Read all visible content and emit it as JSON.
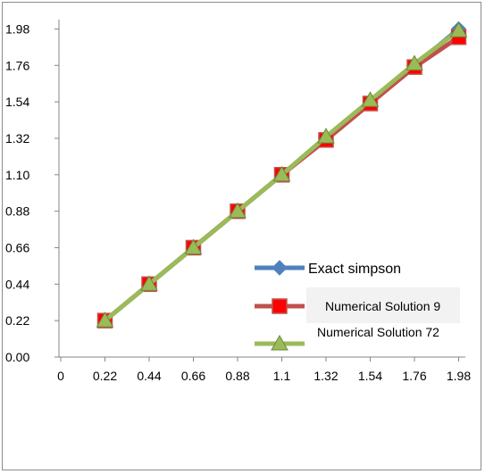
{
  "chart_data": {
    "type": "line",
    "title": "",
    "xlabel": "",
    "ylabel": "",
    "x_ticks": [
      "0",
      "0.22",
      "0.44",
      "0.66",
      "0.88",
      "1.1",
      "1.32",
      "1.54",
      "1.76",
      "1.98"
    ],
    "y_ticks": [
      "0.00",
      "0.22",
      "0.44",
      "0.66",
      "0.88",
      "1.10",
      "1.32",
      "1.54",
      "1.76",
      "1.98"
    ],
    "x": [
      0.22,
      0.44,
      0.66,
      0.88,
      1.1,
      1.32,
      1.54,
      1.76,
      1.98
    ],
    "ylim": [
      0,
      2.09
    ],
    "grid": false,
    "legend_position": "bottom-right",
    "series": [
      {
        "name": "Exact simpson",
        "color": "#4f81bd",
        "marker": "diamond",
        "values": [
          0.22,
          0.44,
          0.66,
          0.88,
          1.1,
          1.32,
          1.54,
          1.76,
          1.98
        ]
      },
      {
        "name": "Numerical Solution  9",
        "color": "#c0504d",
        "marker": "square",
        "values": [
          0.22,
          0.44,
          0.66,
          0.88,
          1.1,
          1.31,
          1.53,
          1.75,
          1.93
        ]
      },
      {
        "name": "Numerical Solution  72",
        "color": "#9bbb59",
        "marker": "triangle",
        "values": [
          0.22,
          0.44,
          0.66,
          0.88,
          1.1,
          1.33,
          1.55,
          1.77,
          1.97
        ]
      }
    ]
  }
}
